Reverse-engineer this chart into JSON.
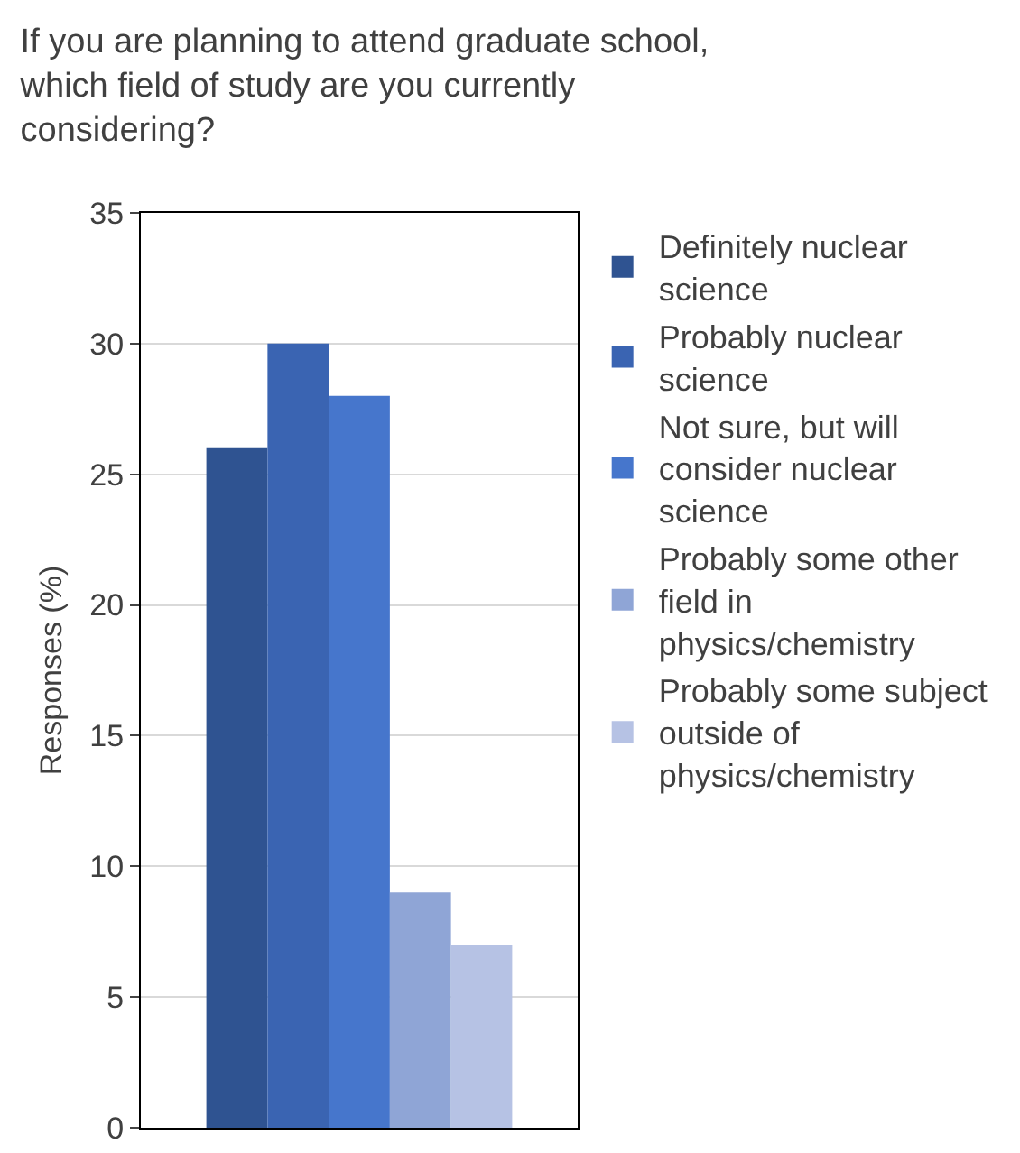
{
  "chart_data": {
    "type": "bar",
    "title": "If you are planning to attend graduate school, which field of study are you currently considering?",
    "ylabel": "Responses (%)",
    "categories": [
      null
    ],
    "series": [
      {
        "name": "Definitely nuclear science",
        "color": "#2f5391",
        "values": [
          26
        ]
      },
      {
        "name": "Probably nuclear science",
        "color": "#3a64b2",
        "values": [
          30
        ]
      },
      {
        "name": "Not sure, but will consider nuclear science",
        "color": "#4676cc",
        "values": [
          28
        ]
      },
      {
        "name": "Probably some other field in physics/chemistry",
        "color": "#8fa5d6",
        "values": [
          9
        ]
      },
      {
        "name": "Probably some subject outside of physics/chemistry",
        "color": "#b6c2e4",
        "values": [
          7
        ]
      }
    ],
    "ylim": [
      0,
      35
    ],
    "yticks": [
      0,
      5,
      10,
      15,
      20,
      25,
      30,
      35
    ],
    "grid": "y",
    "legend": "right"
  }
}
